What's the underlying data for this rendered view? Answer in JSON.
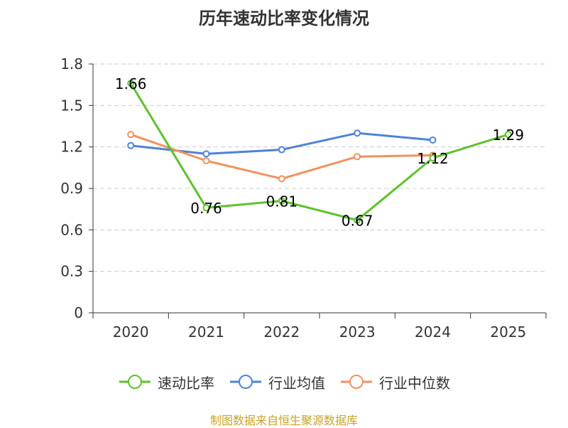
{
  "title": "历年速动比率变化情况",
  "source": "制图数据来自恒生聚源数据库",
  "chart_data": {
    "type": "line",
    "title": "历年速动比率变化情况",
    "categories": [
      "2020",
      "2021",
      "2022",
      "2023",
      "2024",
      "2025"
    ],
    "ylim": [
      0,
      1.8
    ],
    "yticks": [
      "0",
      "0.3",
      "0.6",
      "0.9",
      "1.2",
      "1.5",
      "1.8"
    ],
    "grid": true,
    "legend_position": "bottom",
    "series": [
      {
        "name": "速动比率",
        "color": "#5ec12e",
        "values": [
          1.66,
          0.76,
          0.81,
          0.67,
          1.12,
          1.29
        ],
        "labels": [
          "1.66",
          "0.76",
          "0.81",
          "0.67",
          "1.12",
          "1.29"
        ]
      },
      {
        "name": "行业均值",
        "color": "#4f82d9",
        "values": [
          1.21,
          1.15,
          1.18,
          1.3,
          1.25,
          null
        ]
      },
      {
        "name": "行业中位数",
        "color": "#f2915e",
        "values": [
          1.29,
          1.1,
          0.97,
          1.13,
          1.14,
          null
        ]
      }
    ]
  }
}
